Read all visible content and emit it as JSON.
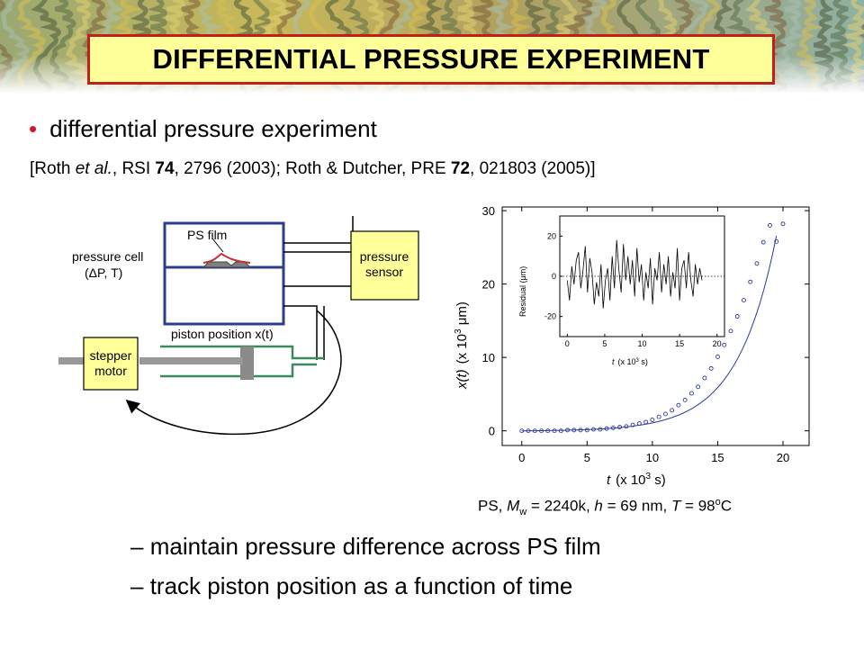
{
  "slide": {
    "title": "DIFFERENTIAL PRESSURE EXPERIMENT",
    "bullet": "differential pressure experiment",
    "reference": {
      "p1": "[Roth ",
      "p2": "et al.",
      "p3": ", RSI ",
      "p4": "74",
      "p5": ", 2796 (2003); Roth & Dutcher, PRE ",
      "p6": "72",
      "p7": ", 021803 (2005)]"
    },
    "sub_bullets": [
      {
        "dash": "–",
        "text": "maintain pressure difference across PS film"
      },
      {
        "dash": "–",
        "text": "track piston position as a function of time"
      }
    ],
    "caption": {
      "c1": "PS, ",
      "c2": "M",
      "c3": "w",
      "c4": " = 2240k, ",
      "c5": "h",
      "c6": " = 69 nm, ",
      "c7": "T",
      "c8": " = 98",
      "c9": "o",
      "c10": "C"
    }
  },
  "schematic": {
    "ps_film": "PS film",
    "pressure_cell_line1": "pressure cell",
    "pressure_cell_line2": "(ΔP, T)",
    "pressure_sensor_line1": "pressure",
    "pressure_sensor_line2": "sensor",
    "piston_label": "piston position x(t)",
    "stepper_line1": "stepper",
    "stepper_line2": "motor",
    "colors": {
      "cell": "#2e3e8c",
      "piston_line": "#3a8a5c",
      "box": "#ffff99",
      "film": "#c83030"
    }
  },
  "chart_data": [
    {
      "type": "scatter",
      "xlabel": {
        "var": "t",
        "unit_prefix": "(x 10",
        "exp": "3",
        "unit_suffix": " s)"
      },
      "ylabel": {
        "var": "x(t)",
        "unit_prefix": "(x 10",
        "exp": "3",
        "unit_suffix": " μm)"
      },
      "xlim": [
        -1.5,
        22
      ],
      "ylim": [
        -2,
        30.5
      ],
      "xticks": [
        "0",
        "5",
        "10",
        "15",
        "20"
      ],
      "yticks": [
        "0",
        "10",
        "20",
        "30"
      ],
      "marker_color": "#2b3a9a",
      "fit": "exponential",
      "x": [
        0,
        0.5,
        1,
        1.5,
        2,
        2.5,
        3,
        3.5,
        4,
        4.5,
        5,
        5.5,
        6,
        6.5,
        7,
        7.5,
        8,
        8.5,
        9,
        9.5,
        10,
        10.5,
        11,
        11.5,
        12,
        12.5,
        13,
        13.5,
        14,
        14.5,
        15,
        15.5,
        16,
        16.5,
        17,
        17.5,
        18,
        18.5,
        19,
        19.5,
        20
      ],
      "y": [
        0,
        0,
        0,
        0,
        0,
        0,
        0,
        0.1,
        0.1,
        0.1,
        0.1,
        0.2,
        0.2,
        0.3,
        0.4,
        0.5,
        0.6,
        0.8,
        1.0,
        1.2,
        1.5,
        1.9,
        2.3,
        2.8,
        3.5,
        4.2,
        5.1,
        6.0,
        7.2,
        8.5,
        10.1,
        11.7,
        13.6,
        15.6,
        17.8,
        20.3,
        22.8,
        25.7,
        28.0,
        25.8,
        28.2
      ]
    },
    {
      "type": "line",
      "ylabel": "Residual  (μm)",
      "xlabel": {
        "var": "t",
        "unit_prefix": "(x 10",
        "exp": "3",
        "unit_suffix": " s)"
      },
      "xlim": [
        -1,
        21
      ],
      "ylim": [
        -30,
        30
      ],
      "xticks": [
        "0",
        "5",
        "10",
        "15",
        "20"
      ],
      "yticks": [
        "20",
        "0",
        "-20"
      ],
      "reference_line": 0,
      "x": [
        0,
        0.3,
        0.6,
        0.9,
        1.2,
        1.5,
        1.8,
        2.1,
        2.4,
        2.7,
        3.0,
        3.3,
        3.6,
        3.9,
        4.2,
        4.5,
        4.8,
        5.1,
        5.4,
        5.7,
        6.0,
        6.3,
        6.6,
        6.9,
        7.2,
        7.5,
        7.8,
        8.1,
        8.4,
        8.7,
        9.0,
        9.3,
        9.6,
        9.9,
        10.2,
        10.5,
        10.8,
        11.1,
        11.4,
        11.7,
        12.0,
        12.3,
        12.6,
        12.9,
        13.2,
        13.5,
        13.8,
        14.1,
        14.4,
        14.7,
        15.0,
        15.3,
        15.6,
        15.9,
        16.2,
        16.5,
        16.8,
        17.1,
        17.4,
        17.7,
        18.0
      ],
      "y": [
        -2,
        -12,
        5,
        -4,
        8,
        12,
        -6,
        3,
        15,
        -8,
        9,
        2,
        -14,
        -3,
        -10,
        6,
        -16,
        -2,
        4,
        -12,
        10,
        -6,
        18,
        3,
        -8,
        16,
        -2,
        10,
        -4,
        8,
        -10,
        14,
        -3,
        6,
        -12,
        2,
        -6,
        9,
        -14,
        4,
        -2,
        12,
        -8,
        6,
        -4,
        10,
        -10,
        2,
        -6,
        14,
        -12,
        4,
        8,
        -6,
        12,
        -2,
        -10,
        6,
        -4,
        4,
        -2
      ]
    }
  ]
}
